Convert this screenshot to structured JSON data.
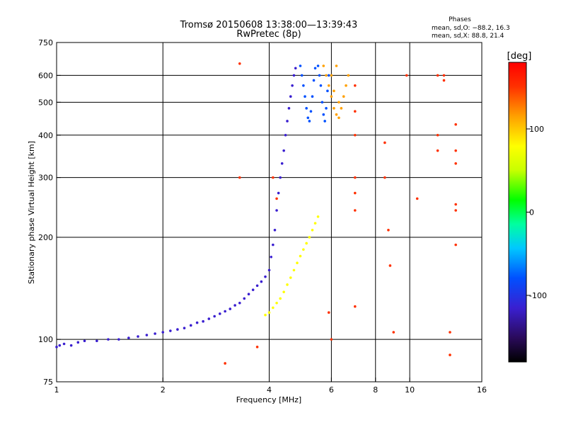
{
  "chart_data": {
    "type": "scatter",
    "title_line1": "Tromsø 20150608 13:38:00—13:39:43",
    "title_line2": "RwPretec (8p)",
    "xlabel": "Frequency [MHz]",
    "ylabel": "Stationary phase Virtual Height [km]",
    "x_scale": "log",
    "y_scale": "log",
    "xlim": [
      1,
      16
    ],
    "ylim": [
      75,
      750
    ],
    "x_ticks": [
      1,
      2,
      4,
      6,
      8,
      10,
      16
    ],
    "x_tick_labels": [
      "1",
      "2",
      "4",
      "6",
      "8",
      "10",
      "16"
    ],
    "x_gridlines": [
      2,
      4,
      6,
      8,
      10
    ],
    "y_ticks": [
      75,
      100,
      200,
      300,
      400,
      500,
      600,
      750
    ],
    "y_tick_labels": [
      "75",
      "100",
      "200",
      "300",
      "400",
      "500",
      "600",
      "750"
    ],
    "y_gridlines": [
      100,
      200,
      300,
      400,
      500,
      600
    ],
    "grid": true,
    "phase_stats": {
      "title": "Phases",
      "line_o": "mean, sd,O: −88.2, 16.3",
      "line_x": "mean, sd,X:  88.8, 21.4"
    },
    "colorbar": {
      "label": "[deg]",
      "min": -180,
      "max": 180,
      "ticks": [
        100,
        0,
        -100
      ],
      "tick_labels": [
        "100",
        "0",
        "-100"
      ],
      "colors": [
        "#000000",
        "#2a0a5a",
        "#3a1fd0",
        "#0050ff",
        "#00c8ff",
        "#00ffa0",
        "#00ff00",
        "#c8ff00",
        "#ffff00",
        "#ffa000",
        "#ff3000",
        "#ff0000"
      ]
    },
    "series": [
      {
        "name": "O-mode trace (low)",
        "phase": -100,
        "points": [
          [
            1.0,
            95
          ],
          [
            1.02,
            96
          ],
          [
            1.05,
            97
          ],
          [
            1.1,
            96
          ],
          [
            1.15,
            98
          ],
          [
            1.2,
            99
          ],
          [
            1.3,
            99
          ],
          [
            1.4,
            100
          ],
          [
            1.5,
            100
          ],
          [
            1.6,
            101
          ],
          [
            1.7,
            102
          ],
          [
            1.8,
            103
          ],
          [
            1.9,
            104
          ],
          [
            2.0,
            105
          ],
          [
            2.1,
            106
          ],
          [
            2.2,
            107
          ],
          [
            2.3,
            108
          ],
          [
            2.4,
            110
          ],
          [
            2.5,
            112
          ],
          [
            2.6,
            113
          ],
          [
            2.7,
            115
          ],
          [
            2.8,
            117
          ],
          [
            2.9,
            119
          ],
          [
            3.0,
            121
          ],
          [
            3.1,
            123
          ],
          [
            3.2,
            126
          ],
          [
            3.3,
            128
          ],
          [
            3.4,
            132
          ],
          [
            3.5,
            136
          ],
          [
            3.6,
            140
          ],
          [
            3.7,
            144
          ],
          [
            3.8,
            148
          ],
          [
            3.9,
            153
          ],
          [
            4.0,
            160
          ],
          [
            4.05,
            175
          ],
          [
            4.1,
            190
          ],
          [
            4.15,
            210
          ],
          [
            4.2,
            240
          ],
          [
            4.25,
            270
          ],
          [
            4.3,
            300
          ],
          [
            4.35,
            330
          ],
          [
            4.4,
            360
          ],
          [
            4.45,
            400
          ],
          [
            4.5,
            440
          ],
          [
            4.55,
            480
          ],
          [
            4.6,
            520
          ],
          [
            4.65,
            560
          ],
          [
            4.7,
            600
          ],
          [
            4.75,
            630
          ]
        ]
      },
      {
        "name": "O-mode cluster (F2)",
        "phase": -90,
        "points": [
          [
            4.9,
            640
          ],
          [
            4.95,
            600
          ],
          [
            5.0,
            560
          ],
          [
            5.05,
            520
          ],
          [
            5.1,
            480
          ],
          [
            5.15,
            450
          ],
          [
            5.2,
            440
          ],
          [
            5.25,
            470
          ],
          [
            5.3,
            520
          ],
          [
            5.35,
            580
          ],
          [
            5.4,
            630
          ],
          [
            5.5,
            640
          ],
          [
            5.55,
            600
          ],
          [
            5.6,
            560
          ],
          [
            5.65,
            500
          ],
          [
            5.7,
            460
          ],
          [
            5.75,
            440
          ],
          [
            5.8,
            480
          ],
          [
            5.85,
            540
          ],
          [
            5.9,
            600
          ]
        ]
      },
      {
        "name": "X-mode trace",
        "phase": 90,
        "points": [
          [
            3.9,
            118
          ],
          [
            4.0,
            120
          ],
          [
            4.1,
            124
          ],
          [
            4.2,
            128
          ],
          [
            4.3,
            132
          ],
          [
            4.4,
            138
          ],
          [
            4.5,
            145
          ],
          [
            4.6,
            152
          ],
          [
            4.7,
            160
          ],
          [
            4.8,
            168
          ],
          [
            4.9,
            176
          ],
          [
            5.0,
            184
          ],
          [
            5.1,
            192
          ],
          [
            5.2,
            200
          ],
          [
            5.3,
            210
          ],
          [
            5.4,
            220
          ],
          [
            5.5,
            230
          ]
        ]
      },
      {
        "name": "X-mode cluster (F2)",
        "phase": 100,
        "points": [
          [
            5.7,
            640
          ],
          [
            5.8,
            600
          ],
          [
            5.9,
            560
          ],
          [
            6.0,
            520
          ],
          [
            6.1,
            480
          ],
          [
            6.2,
            460
          ],
          [
            6.3,
            450
          ],
          [
            6.4,
            480
          ],
          [
            6.5,
            520
          ],
          [
            6.6,
            560
          ],
          [
            6.7,
            600
          ],
          [
            6.2,
            640
          ],
          [
            6.0,
            600
          ],
          [
            6.1,
            540
          ],
          [
            6.3,
            500
          ]
        ]
      },
      {
        "name": "scattered echoes",
        "phase": 150,
        "points": [
          [
            3.3,
            650
          ],
          [
            3.3,
            300
          ],
          [
            4.1,
            300
          ],
          [
            4.2,
            260
          ],
          [
            7.0,
            560
          ],
          [
            7.0,
            470
          ],
          [
            7.0,
            400
          ],
          [
            7.0,
            300
          ],
          [
            7.0,
            270
          ],
          [
            7.0,
            240
          ],
          [
            7.0,
            125
          ],
          [
            8.5,
            380
          ],
          [
            8.5,
            300
          ],
          [
            8.7,
            210
          ],
          [
            8.8,
            165
          ],
          [
            9.0,
            105
          ],
          [
            9.8,
            600
          ],
          [
            10.5,
            260
          ],
          [
            12.0,
            600
          ],
          [
            12.0,
            400
          ],
          [
            12.0,
            360
          ],
          [
            12.5,
            600
          ],
          [
            12.5,
            580
          ],
          [
            13.5,
            430
          ],
          [
            13.5,
            360
          ],
          [
            13.5,
            330
          ],
          [
            13.5,
            250
          ],
          [
            13.5,
            240
          ],
          [
            13.5,
            190
          ],
          [
            13.0,
            105
          ],
          [
            13.0,
            90
          ],
          [
            6.0,
            100
          ],
          [
            5.9,
            120
          ],
          [
            3.0,
            85
          ],
          [
            3.7,
            95
          ]
        ]
      }
    ]
  }
}
